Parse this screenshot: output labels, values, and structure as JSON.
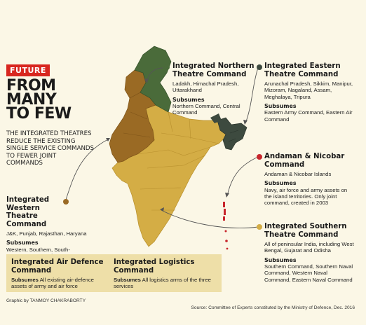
{
  "tag": "FUTURE",
  "headline": [
    "FROM",
    "MANY",
    "TO FEW"
  ],
  "subhead": "THE INTEGRATED THEATRES REDUCE THE EXISTING SINGLE SERVICE COMMANDS TO FEWER JOINT COMMANDS",
  "colors": {
    "northern": "#4a6b3a",
    "eastern": "#3d4a3f",
    "western": "#9a6a24",
    "southern": "#d4ad45",
    "andaman": "#c8262c",
    "accent_red": "#d8261f",
    "box_bg": "#eedfa8"
  },
  "commands": {
    "northern": {
      "title": "Integrated Northern Theatre Command",
      "areas": "Ladakh, Himachal Pradesh, Uttarakhand",
      "subsumes_label": "Subsumes",
      "subsumes": "Northern Command, Central Command"
    },
    "eastern": {
      "title": "Integrated Eastern Theatre Command",
      "areas": "Arunachal Pradesh, Sikkim, Manipur, Mizoram, Nagaland, Assam, Meghalaya, Tripura",
      "subsumes_label": "Subsumes",
      "subsumes": "Eastern Army Command, Eastern Air Command"
    },
    "andaman": {
      "title": "Andaman & Nicobar Command",
      "areas": "Andaman & Nicobar Islands",
      "subsumes_label": "Subsumes",
      "subsumes": "Navy, air force and army assets on the island territories. Only joint command, created in 2003"
    },
    "western": {
      "title": "Integrated Western Theatre Command",
      "areas": "J&K, Punjab, Rajasthan, Haryana",
      "subsumes_label": "Subsumes",
      "subsumes": "Western, Southern, South-Western Commands"
    },
    "southern": {
      "title": "Integrated Southern Theatre Command",
      "areas": "All of peninsular India, including West Bengal, Gujarat and Odisha",
      "subsumes_label": "Subsumes",
      "subsumes": "Southern Command, Southern Naval Command, Western Naval Command, Eastern Naval Command"
    },
    "air_defence": {
      "title": "Integrated Air Defence Command",
      "subsumes_label": "Subsumes",
      "subsumes": "All existing air-defence assets of army and air force"
    },
    "logistics": {
      "title": "Integrated Logistics Command",
      "subsumes_label": "Subsumes",
      "subsumes": "All logistics arms of the three services"
    }
  },
  "credit": "Graphic by TANMOY CHAKRABORTY",
  "source": "Source: Committee of Experts constituted by the Ministry of Defence, Dec. 2016"
}
